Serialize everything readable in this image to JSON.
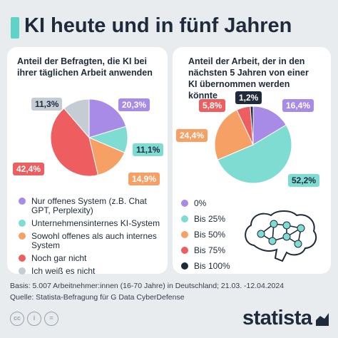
{
  "title": "KI heute und in fünf Jahren",
  "chart_data": [
    {
      "type": "pie",
      "title": "Anteil der Befragten, die KI bei ihrer täglichen Arbeit anwenden",
      "series": [
        {
          "name": "Nur offenes System (z.B. Chat GPT, Perplexity)",
          "value": 20.3,
          "label": "20,3%",
          "color": "#a78be6"
        },
        {
          "name": "Unternehmensinternes KI-System",
          "value": 11.1,
          "label": "11,1%",
          "color": "#7fdcd3"
        },
        {
          "name": "Sowohl offenes als auch internes System",
          "value": 14.9,
          "label": "14,9%",
          "color": "#f7a066"
        },
        {
          "name": "Noch gar nicht",
          "value": 42.4,
          "label": "42,4%",
          "color": "#ee5e60"
        },
        {
          "name": "Ich weiß es nicht",
          "value": 11.3,
          "label": "11,3%",
          "color": "#c5ccd3"
        }
      ]
    },
    {
      "type": "pie",
      "title": "Anteil der Arbeit, der in den nächsten 5 Jahren von einer KI übernommen werden könnte",
      "series": [
        {
          "name": "0%",
          "value": 16.4,
          "label": "16,4%",
          "color": "#a78be6"
        },
        {
          "name": "Bis 25%",
          "value": 52.2,
          "label": "52,2%",
          "color": "#7fdcd3"
        },
        {
          "name": "Bis 50%",
          "value": 24.4,
          "label": "24,4%",
          "color": "#f7a066"
        },
        {
          "name": "Bis 75%",
          "value": 5.8,
          "label": "5,8%",
          "color": "#ee5e60"
        },
        {
          "name": "Bis 100%",
          "value": 1.2,
          "label": "1,2%",
          "color": "#1f2a3a"
        }
      ]
    }
  ],
  "legend_left": [
    {
      "text": "Nur offenes System (z.B. Chat GPT, Perplexity)",
      "color": "#a78be6"
    },
    {
      "text": "Unternehmensinternes KI-System",
      "color": "#7fdcd3"
    },
    {
      "text": "Sowohl offenes als auch internes System",
      "color": "#f7a066"
    },
    {
      "text": "Noch gar nicht",
      "color": "#ee5e60"
    },
    {
      "text": "Ich weiß es nicht",
      "color": "#c5ccd3"
    }
  ],
  "legend_right": [
    {
      "text": "0%",
      "color": "#a78be6"
    },
    {
      "text": "Bis 25%",
      "color": "#7fdcd3"
    },
    {
      "text": "Bis 50%",
      "color": "#f7a066"
    },
    {
      "text": "Bis 75%",
      "color": "#ee5e60"
    },
    {
      "text": "Bis 100%",
      "color": "#1f2a3a"
    }
  ],
  "footer": {
    "basis": "Basis: 5.007 Arbeitnehmer:innen (16-70 Jahre) in Deutschland; 21.03. -12.04.2024",
    "source": "Quelle: Statista-Befragung für G Data CyberDefense"
  },
  "license_icons": [
    "cc",
    "i",
    "="
  ],
  "brand": "statista",
  "icons": [
    "brain-network-icon",
    "creative-commons-icon",
    "attribution-icon",
    "no-derivatives-icon",
    "statista-logo-icon"
  ]
}
